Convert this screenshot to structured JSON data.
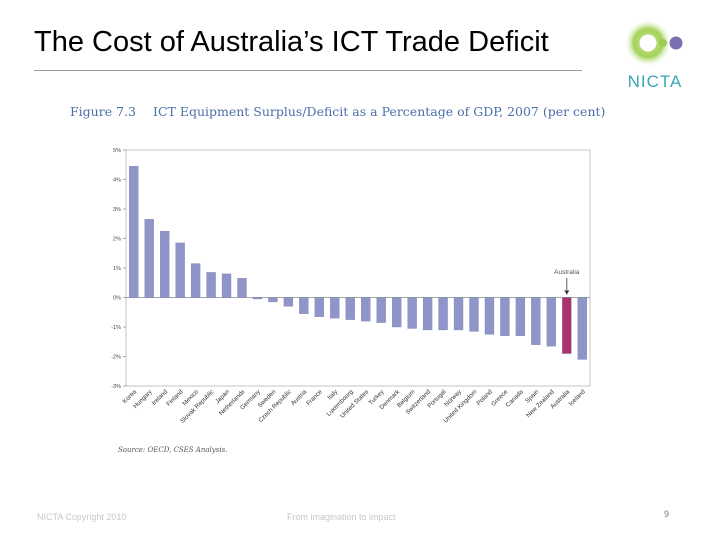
{
  "slide": {
    "title": "The Cost of Australia’s ICT Trade Deficit",
    "logo_text": "NICTA",
    "figure_number": "Figure 7.3",
    "figure_title": "ICT Equipment Surplus/Deficit as a Percentage of GDP, 2007 (per cent)",
    "source": "Source: OECD, CSES Analysis.",
    "footer_left": "NICTA Copyright 2010",
    "footer_center": "From imagination to impact",
    "page_number": "9"
  },
  "colors": {
    "bar": "#8f95c8",
    "highlight": "#a8336d",
    "logo_green": "#8cc63f",
    "logo_purple": "#7b6fb0"
  },
  "chart_data": {
    "type": "bar",
    "title": "ICT Equipment Surplus/Deficit as a Percentage of GDP, 2007 (per cent)",
    "xlabel": "",
    "ylabel": "",
    "ylim": [
      -3,
      5
    ],
    "y_ticks": [
      "5%",
      "4%",
      "3%",
      "2%",
      "1%",
      "0%",
      "-1%",
      "-2%",
      "-3%"
    ],
    "grid": false,
    "legend": "none",
    "highlight_category": "Australia",
    "annotation": "Australia",
    "categories": [
      "Korea",
      "Hungary",
      "Ireland",
      "Finland",
      "Mexico",
      "Slovak Republic",
      "Japan",
      "Netherlands",
      "Germany",
      "Sweden",
      "Czech Republic",
      "Austria",
      "France",
      "Italy",
      "Luxembourg",
      "United States",
      "Turkey",
      "Denmark",
      "Belgium",
      "Switzerland",
      "Portugal",
      "Norway",
      "United Kingdom",
      "Poland",
      "Greece",
      "Canada",
      "Spain",
      "New Zealand",
      "Australia",
      "Iceland"
    ],
    "values": [
      4.45,
      2.65,
      2.25,
      1.85,
      1.15,
      0.85,
      0.8,
      0.65,
      -0.05,
      -0.15,
      -0.3,
      -0.55,
      -0.65,
      -0.7,
      -0.75,
      -0.8,
      -0.85,
      -1.0,
      -1.05,
      -1.1,
      -1.1,
      -1.1,
      -1.15,
      -1.25,
      -1.3,
      -1.3,
      -1.6,
      -1.65,
      -1.9,
      -2.1
    ]
  }
}
